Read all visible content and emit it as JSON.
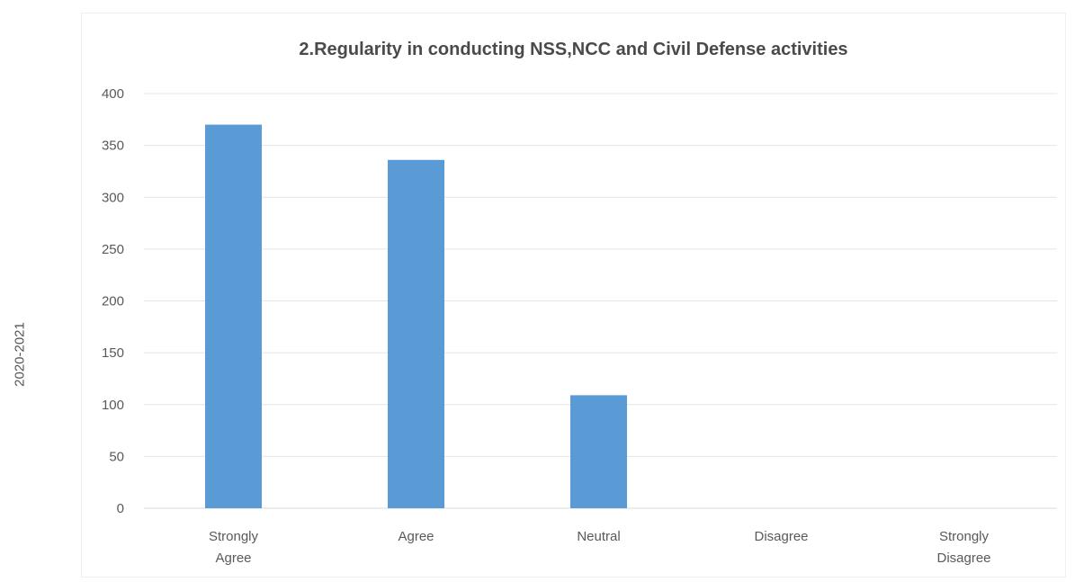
{
  "chart_data": {
    "type": "bar",
    "title": "2.Regularity in conducting NSS,NCC and Civil Defense activities",
    "xlabel": "",
    "ylabel": "2020-2021",
    "categories": [
      [
        "Strongly",
        "Agree"
      ],
      [
        "Agree"
      ],
      [
        "Neutral"
      ],
      [
        "Disagree"
      ],
      [
        "Strongly",
        "Disagree"
      ]
    ],
    "values": [
      370,
      336,
      109,
      0,
      0
    ],
    "ylim": [
      0,
      400
    ],
    "yticks": [
      "0",
      "50",
      "100",
      "150",
      "200",
      "250",
      "300",
      "350",
      "400"
    ],
    "grid": true,
    "legend": "none",
    "colors": {
      "bar": "#5b9bd5",
      "grid": "#e4e4e4",
      "text": "#595959",
      "title": "#4a4a4a"
    }
  }
}
